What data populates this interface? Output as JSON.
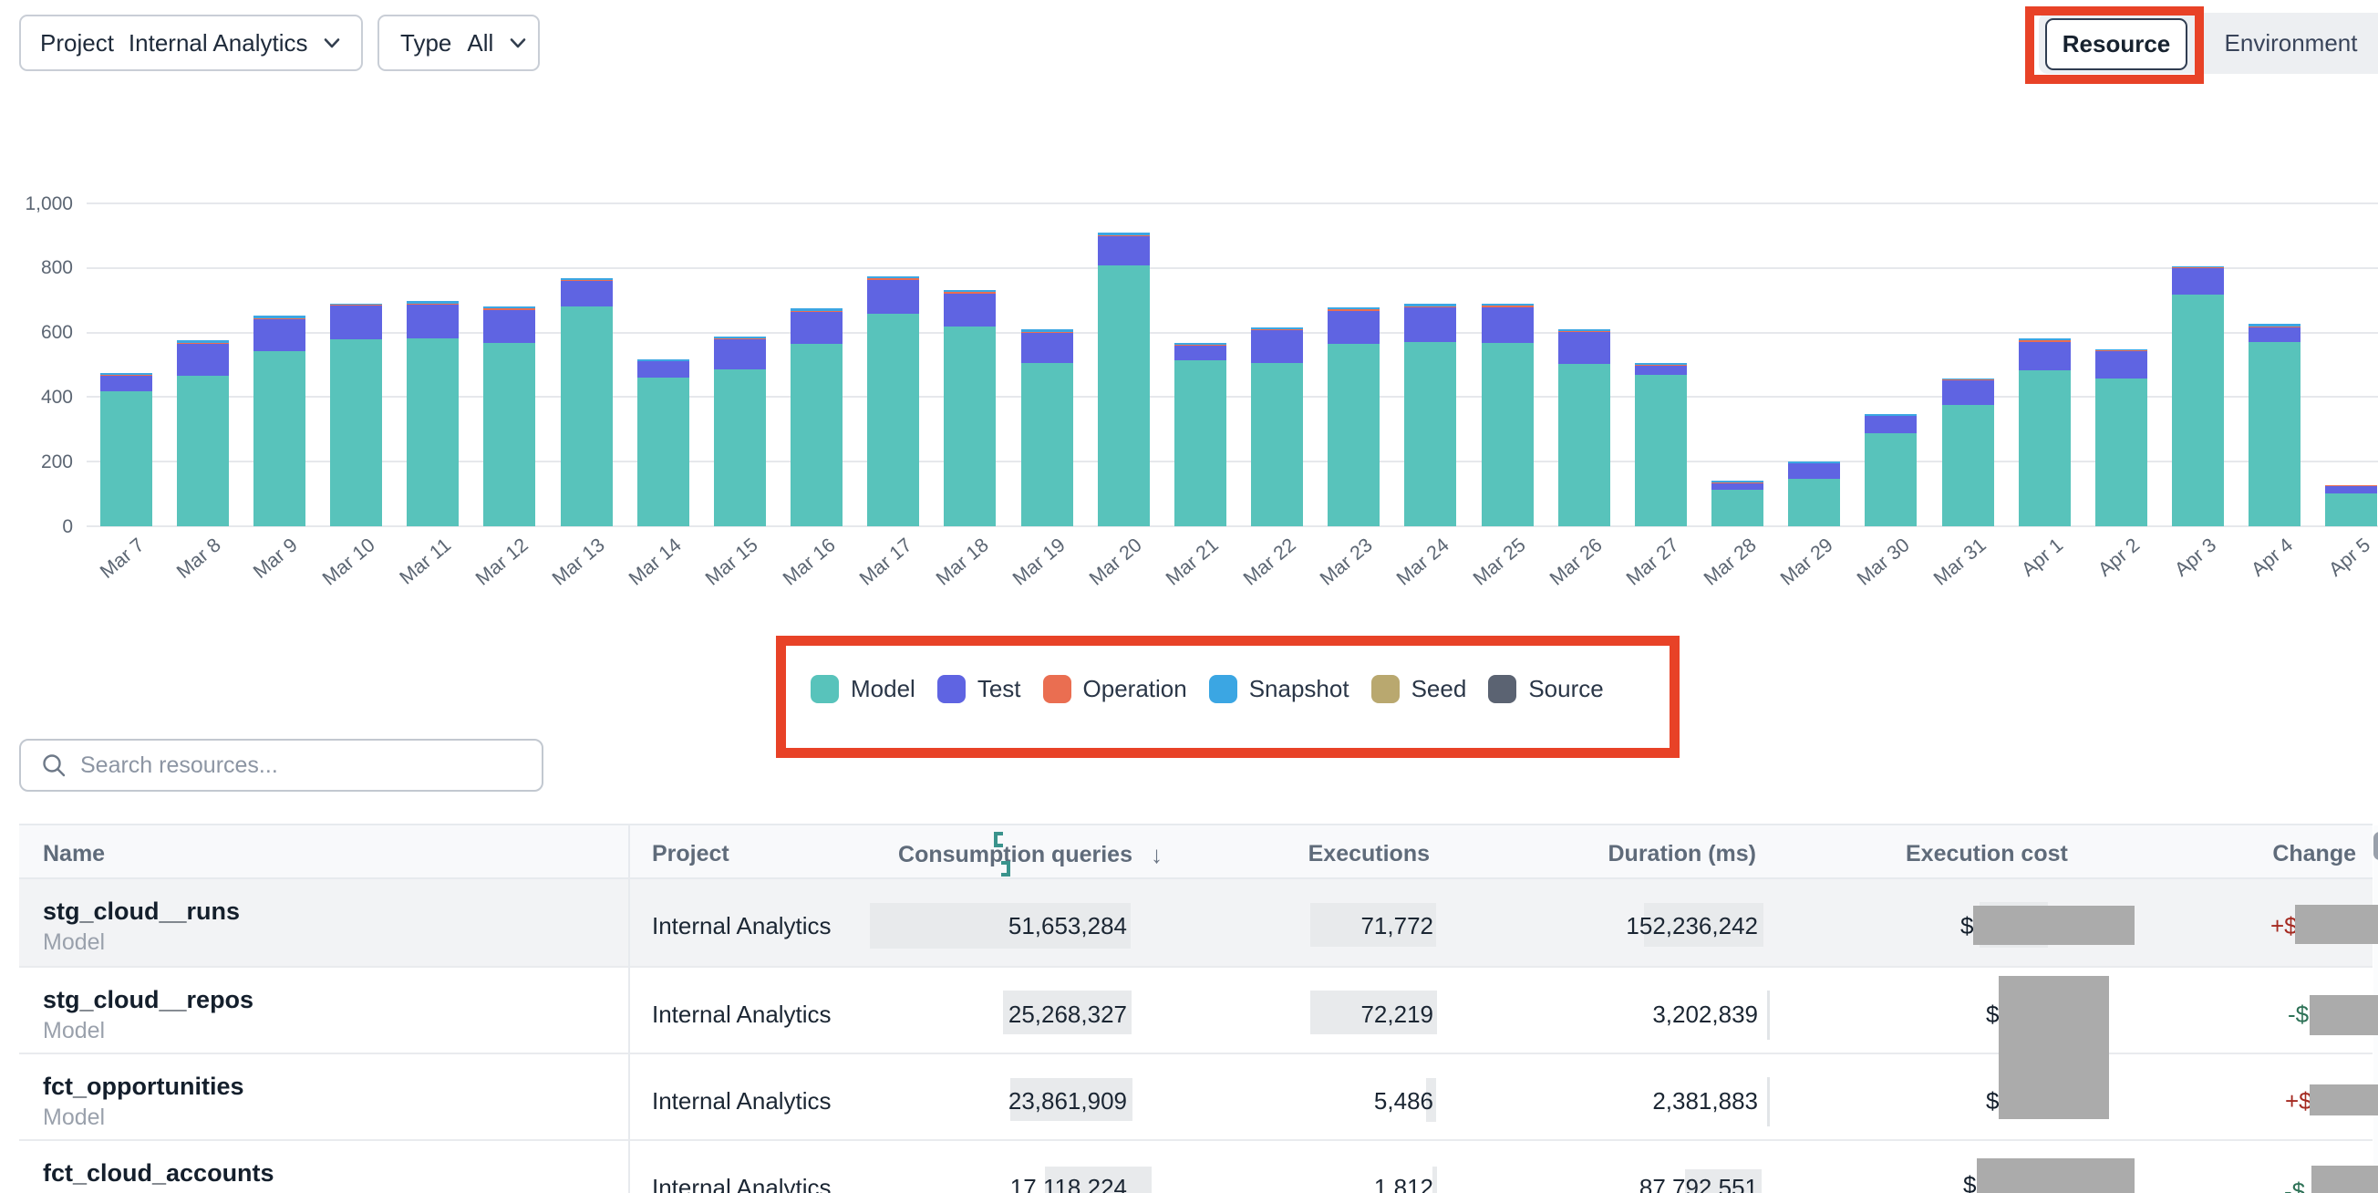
{
  "filters": {
    "project": {
      "label": "Project",
      "value": "Internal Analytics"
    },
    "type": {
      "label": "Type",
      "value": "All"
    }
  },
  "view_toggle": {
    "selected": "Resource",
    "other": "Environment"
  },
  "annotations": {
    "color": "#E84227",
    "items": [
      "resource-toggle-box",
      "legend-box"
    ]
  },
  "chart_data": {
    "type": "bar",
    "stacked": true,
    "title": "",
    "xlabel": "",
    "ylabel": "",
    "ylim": [
      0,
      1000
    ],
    "yticks": [
      0,
      200,
      400,
      600,
      800,
      1000
    ],
    "ytick_labels": [
      "0",
      "200",
      "400",
      "600",
      "800",
      "1,000"
    ],
    "grid": true,
    "legend_position": "bottom",
    "categories": [
      "Mar 7",
      "Mar 8",
      "Mar 9",
      "Mar 10",
      "Mar 11",
      "Mar 12",
      "Mar 13",
      "Mar 14",
      "Mar 15",
      "Mar 16",
      "Mar 17",
      "Mar 18",
      "Mar 19",
      "Mar 20",
      "Mar 21",
      "Mar 22",
      "Mar 23",
      "Mar 24",
      "Mar 25",
      "Mar 26",
      "Mar 27",
      "Mar 28",
      "Mar 29",
      "Mar 30",
      "Mar 31",
      "Apr 1",
      "Apr 2",
      "Apr 3",
      "Apr 4",
      "Apr 5"
    ],
    "series": [
      {
        "name": "Model",
        "color": "#58C3BB",
        "values": [
          418,
          466,
          543,
          579,
          581,
          567,
          682,
          461,
          485,
          566,
          659,
          620,
          505,
          807,
          515,
          505,
          566,
          572,
          569,
          503,
          468,
          114,
          148,
          289,
          375,
          483,
          457,
          718,
          572,
          103
        ]
      },
      {
        "name": "Test",
        "color": "#5F64E2",
        "values": [
          47,
          100,
          98,
          104,
          105,
          103,
          77,
          49,
          93,
          99,
          104,
          100,
          93,
          91,
          45,
          102,
          102,
          106,
          110,
          100,
          28,
          20,
          46,
          52,
          76,
          89,
          86,
          82,
          45,
          22
        ]
      },
      {
        "name": "Operation",
        "color": "#EA6E51",
        "values": [
          3,
          3,
          4,
          3,
          4,
          4,
          4,
          2,
          3,
          3,
          4,
          5,
          4,
          4,
          3,
          4,
          4,
          4,
          4,
          3,
          3,
          3,
          2,
          2,
          3,
          4,
          2,
          2,
          3,
          1
        ]
      },
      {
        "name": "Snapshot",
        "color": "#3BA6E3",
        "values": [
          6,
          6,
          9,
          4,
          8,
          7,
          6,
          4,
          6,
          6,
          8,
          8,
          7,
          8,
          5,
          5,
          7,
          7,
          6,
          4,
          6,
          4,
          4,
          4,
          4,
          6,
          3,
          3,
          6,
          2
        ]
      },
      {
        "name": "Seed",
        "color": "#B9A86F",
        "values": [
          0,
          0,
          0,
          0,
          0,
          0,
          0,
          0,
          0,
          0,
          0,
          0,
          0,
          0,
          0,
          0,
          0,
          0,
          0,
          0,
          0,
          0,
          0,
          0,
          0,
          0,
          0,
          0,
          0,
          0
        ]
      },
      {
        "name": "Source",
        "color": "#5B6372",
        "values": [
          0,
          0,
          0,
          0,
          0,
          0,
          0,
          0,
          0,
          0,
          0,
          0,
          0,
          0,
          0,
          0,
          0,
          0,
          0,
          0,
          0,
          0,
          0,
          0,
          0,
          0,
          0,
          0,
          0,
          0
        ]
      }
    ]
  },
  "legend": [
    {
      "label": "Model",
      "color": "#58C3BB"
    },
    {
      "label": "Test",
      "color": "#5F64E2"
    },
    {
      "label": "Operation",
      "color": "#EA6E51"
    },
    {
      "label": "Snapshot",
      "color": "#3BA6E3"
    },
    {
      "label": "Seed",
      "color": "#B9A86F"
    },
    {
      "label": "Source",
      "color": "#5B6372"
    }
  ],
  "search": {
    "placeholder": "Search resources..."
  },
  "table": {
    "columns": {
      "name": "Name",
      "project": "Project",
      "queries": "Consumption queries",
      "executions": "Executions",
      "duration": "Duration (ms)",
      "cost": "Execution cost",
      "change": "Change"
    },
    "sort": {
      "column": "Consumption queries",
      "direction": "desc",
      "arrow": "↓"
    },
    "rows": [
      {
        "name": "stg_cloud__runs",
        "type": "Model",
        "project": "Internal Analytics",
        "queries": "51,653,284",
        "executions": "71,772",
        "duration": "152,236,242",
        "cost": "$",
        "change": "+$",
        "direction": "up"
      },
      {
        "name": "stg_cloud__repos",
        "type": "Model",
        "project": "Internal Analytics",
        "queries": "25,268,327",
        "executions": "72,219",
        "duration": "3,202,839",
        "cost": "$",
        "change": "-$",
        "direction": "down"
      },
      {
        "name": "fct_opportunities",
        "type": "Model",
        "project": "Internal Analytics",
        "queries": "23,861,909",
        "executions": "5,486",
        "duration": "2,381,883",
        "cost": "$",
        "change": "+$",
        "direction": "up"
      },
      {
        "name": "fct_cloud_accounts",
        "type": "",
        "project": "Internal Analytics",
        "queries": "17,118,224",
        "executions": "1,812",
        "duration": "87,792,551",
        "cost": "$",
        "change": "-$",
        "direction": "down"
      }
    ]
  }
}
